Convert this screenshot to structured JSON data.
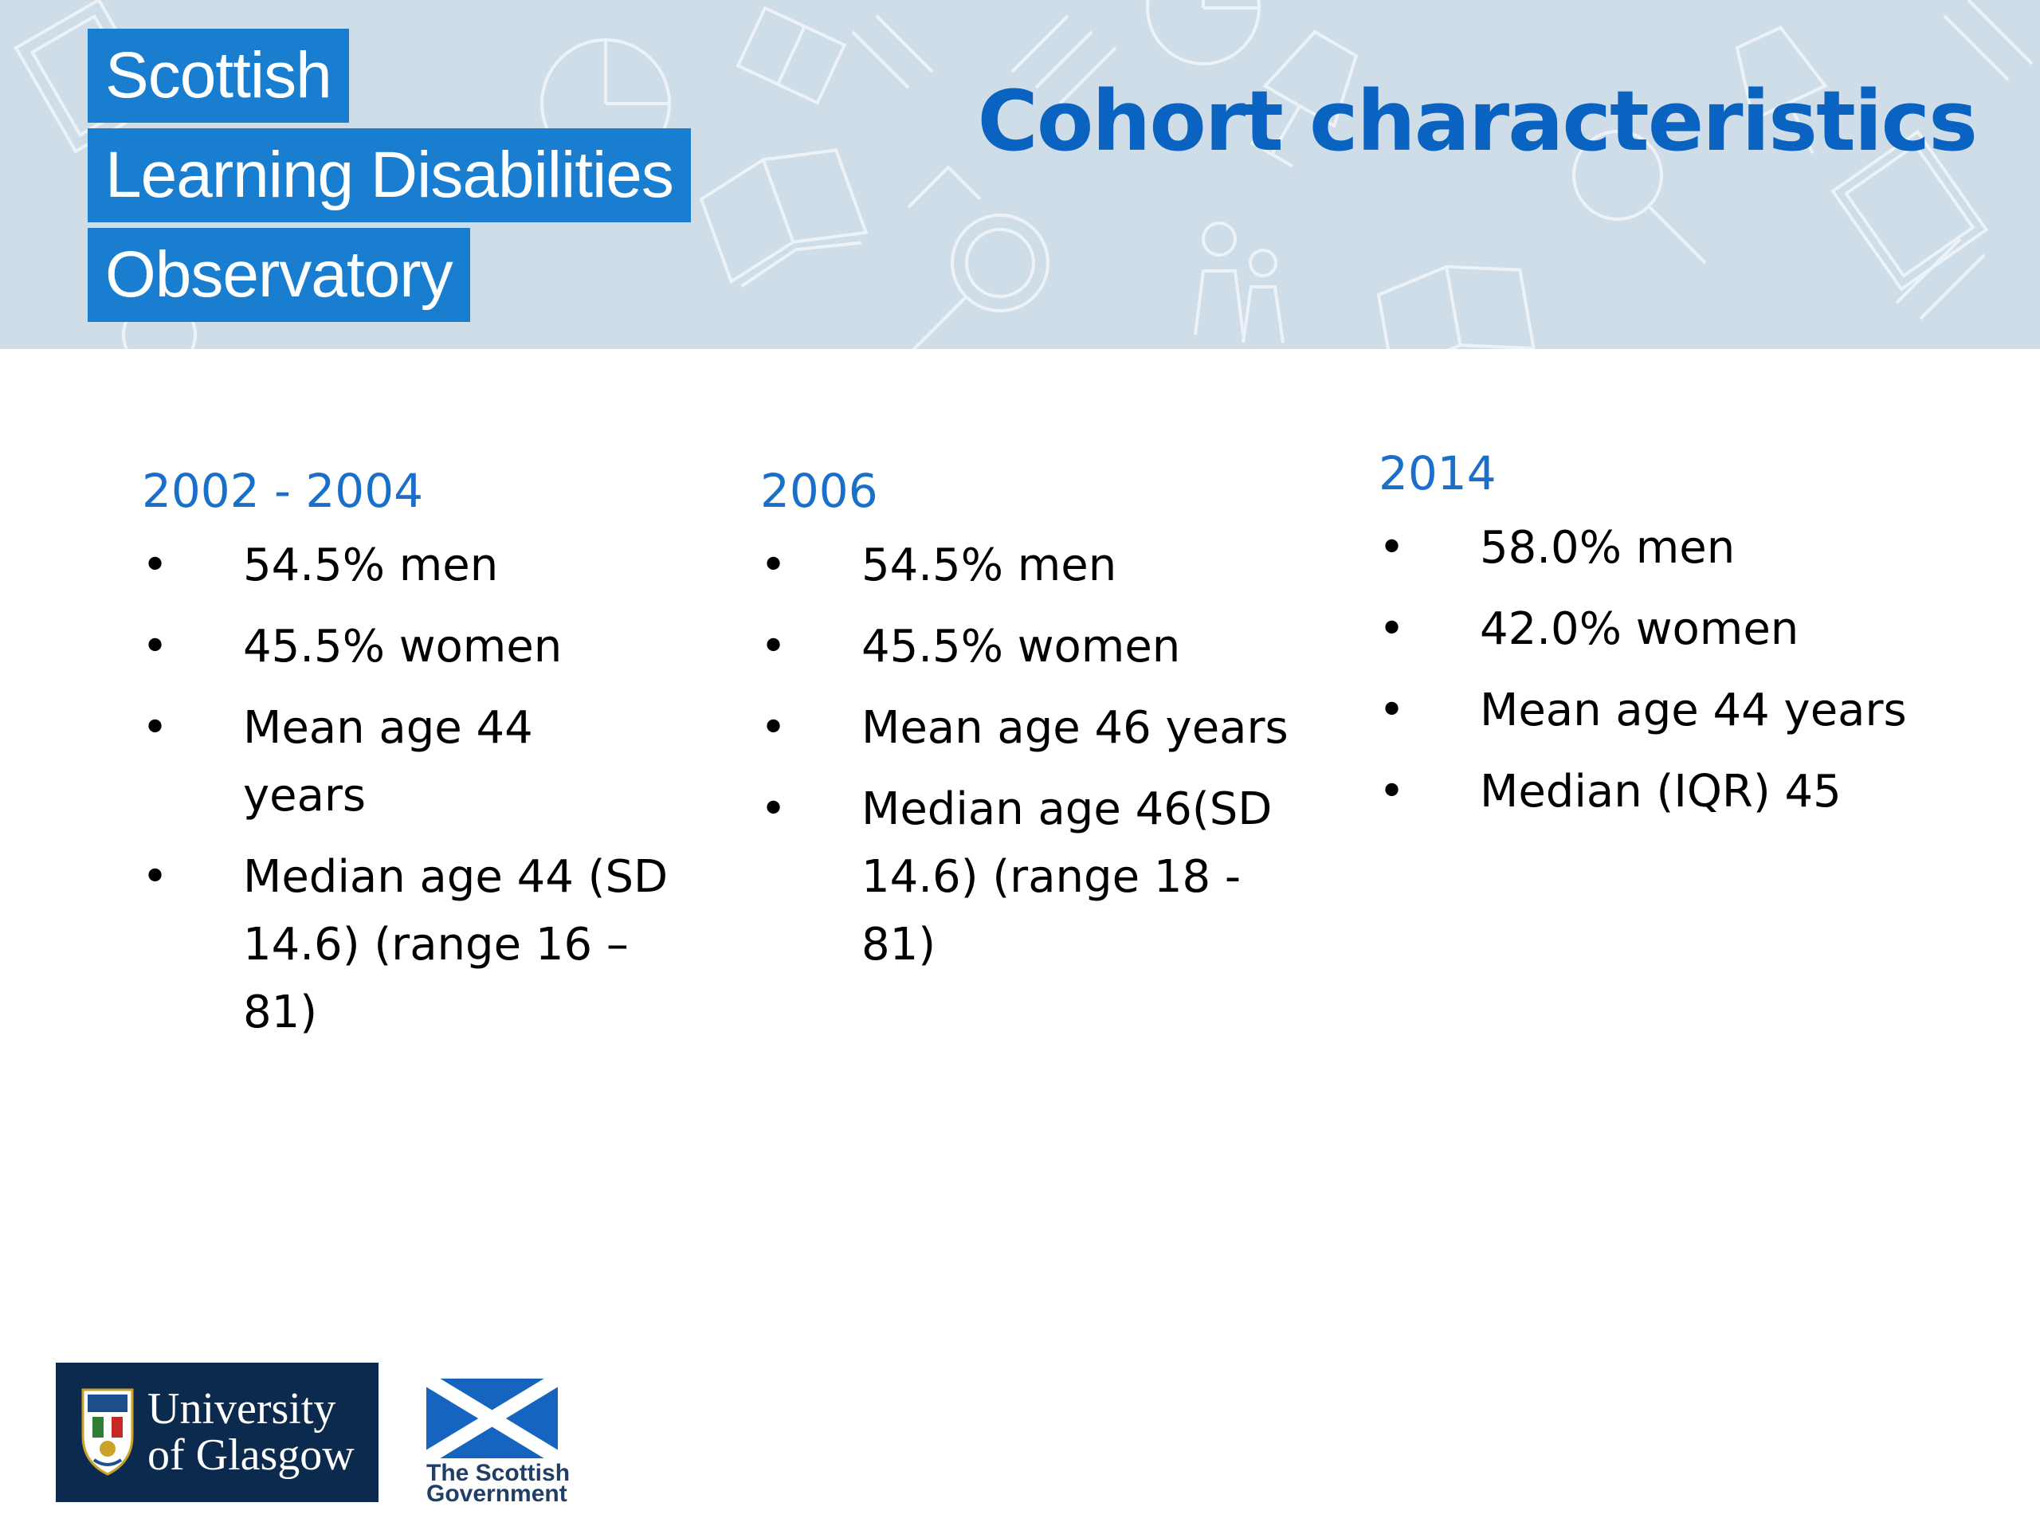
{
  "logo": {
    "line1": "Scottish",
    "line2": "Learning Disabilities",
    "line3": "Observatory"
  },
  "title": "Cohort characteristics",
  "columns": [
    {
      "heading": "2002 - 2004",
      "items": [
        "54.5% men",
        "45.5% women",
        "Mean age 44 years",
        "Median age 44 (SD 14.6) (range 16 – 81)"
      ]
    },
    {
      "heading": "2006",
      "items": [
        "54.5% men",
        "45.5% women",
        "Mean age 46 years",
        "Median age 46(SD 14.6) (range 18 - 81)"
      ]
    },
    {
      "heading": "2014",
      "items": [
        "58.0% men",
        "42.0% women",
        "Mean age 44 years",
        "Median (IQR) 45"
      ]
    }
  ],
  "bullet_char": "•",
  "footer": {
    "university_line1": "University",
    "university_line2": "of Glasgow",
    "government_line1": "The Scottish",
    "government_line2": "Government"
  },
  "colors": {
    "banner_bg": "#cfdde8",
    "logo_blue": "#1a7ed0",
    "title_blue": "#0a63c0",
    "heading_blue": "#1a6fcb",
    "uog_navy": "#0b2a4e",
    "saltire_blue": "#1565c0"
  },
  "icons": [
    "book-icon",
    "magnifier-icon",
    "pie-chart-icon",
    "people-icon",
    "lamp-icon",
    "university-crest-icon",
    "saltire-flag-icon"
  ]
}
